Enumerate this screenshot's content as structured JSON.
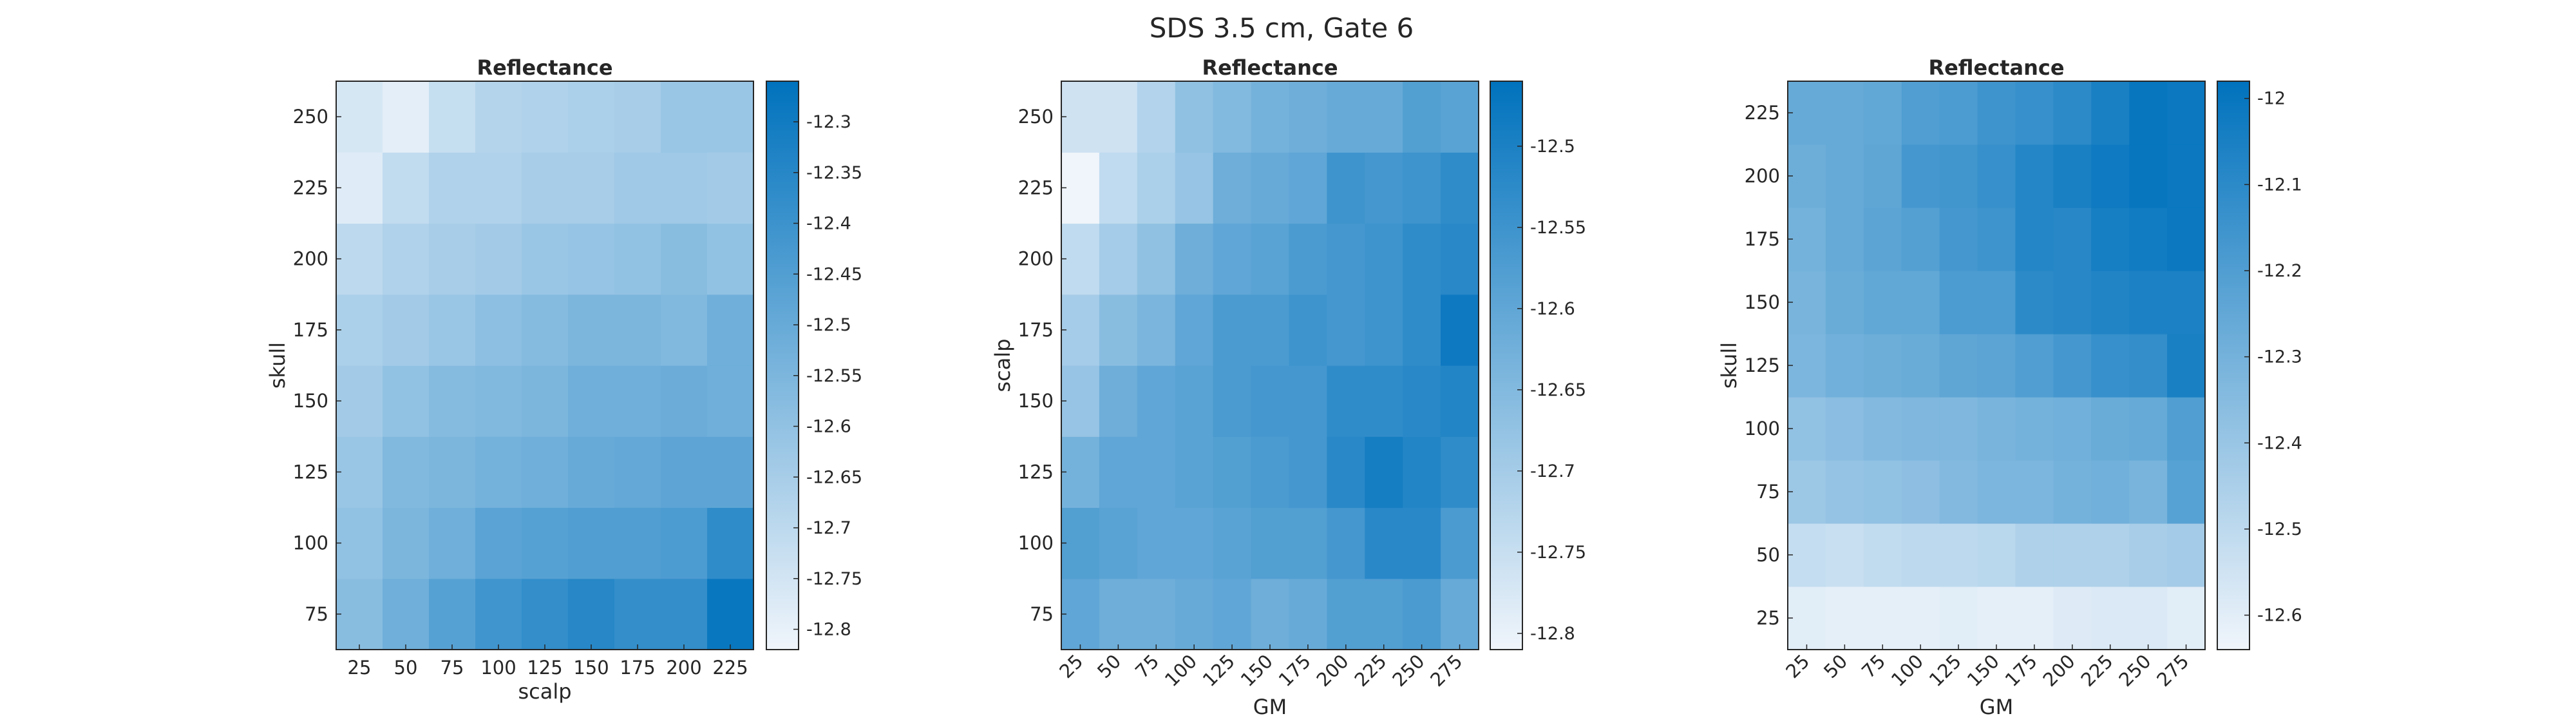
{
  "figure": {
    "suptitle": "SDS 3.5 cm, Gate 6"
  },
  "colormap": {
    "low": "#f0f5fb",
    "high": "#0072bd"
  },
  "chart_data": [
    {
      "type": "heatmap",
      "title": "Reflectance",
      "xlabel": "scalp",
      "ylabel": "skull",
      "x": [
        "25",
        "50",
        "75",
        "100",
        "125",
        "150",
        "175",
        "200",
        "225"
      ],
      "y": [
        "75",
        "100",
        "125",
        "150",
        "175",
        "200",
        "225",
        "250"
      ],
      "clim": [
        -12.82,
        -12.26
      ],
      "colorbar_ticks": [
        "-12.3",
        "-12.35",
        "-12.4",
        "-12.45",
        "-12.5",
        "-12.55",
        "-12.6",
        "-12.65",
        "-12.7",
        "-12.75",
        "-12.8"
      ],
      "colorbar_tick_values": [
        -12.3,
        -12.35,
        -12.4,
        -12.45,
        -12.5,
        -12.55,
        -12.6,
        -12.65,
        -12.7,
        -12.75,
        -12.8
      ],
      "x_tick_rotation": 0,
      "z": [
        [
          -12.58,
          -12.52,
          -12.46,
          -12.41,
          -12.38,
          -12.35,
          -12.38,
          -12.38,
          -12.28
        ],
        [
          -12.6,
          -12.55,
          -12.52,
          -12.47,
          -12.46,
          -12.45,
          -12.45,
          -12.44,
          -12.37
        ],
        [
          -12.62,
          -12.56,
          -12.55,
          -12.53,
          -12.52,
          -12.5,
          -12.49,
          -12.48,
          -12.48
        ],
        [
          -12.64,
          -12.6,
          -12.57,
          -12.56,
          -12.55,
          -12.52,
          -12.52,
          -12.51,
          -12.52
        ],
        [
          -12.66,
          -12.64,
          -12.62,
          -12.59,
          -12.57,
          -12.55,
          -12.55,
          -12.56,
          -12.52
        ],
        [
          -12.7,
          -12.67,
          -12.65,
          -12.64,
          -12.62,
          -12.61,
          -12.6,
          -12.58,
          -12.6
        ],
        [
          -12.78,
          -12.71,
          -12.67,
          -12.67,
          -12.65,
          -12.65,
          -12.63,
          -12.63,
          -12.64
        ],
        [
          -12.76,
          -12.79,
          -12.72,
          -12.68,
          -12.67,
          -12.66,
          -12.65,
          -12.62,
          -12.62
        ]
      ]
    },
    {
      "type": "heatmap",
      "title": "Reflectance",
      "xlabel": "GM",
      "ylabel": "scalp",
      "x": [
        "25",
        "50",
        "75",
        "100",
        "125",
        "150",
        "175",
        "200",
        "225",
        "250",
        "275"
      ],
      "y": [
        "75",
        "100",
        "125",
        "150",
        "175",
        "200",
        "225",
        "250"
      ],
      "clim": [
        -12.81,
        -12.46
      ],
      "colorbar_ticks": [
        "-12.5",
        "-12.55",
        "-12.6",
        "-12.65",
        "-12.7",
        "-12.75",
        "-12.8"
      ],
      "colorbar_tick_values": [
        -12.5,
        -12.55,
        -12.6,
        -12.65,
        -12.7,
        -12.75,
        -12.8
      ],
      "x_tick_rotation": -45,
      "z": [
        [
          -12.6,
          -12.62,
          -12.62,
          -12.61,
          -12.6,
          -12.62,
          -12.61,
          -12.58,
          -12.58,
          -12.57,
          -12.61
        ],
        [
          -12.58,
          -12.59,
          -12.6,
          -12.6,
          -12.59,
          -12.58,
          -12.58,
          -12.56,
          -12.52,
          -12.52,
          -12.57
        ],
        [
          -12.63,
          -12.6,
          -12.6,
          -12.59,
          -12.58,
          -12.57,
          -12.56,
          -12.52,
          -12.49,
          -12.51,
          -12.53
        ],
        [
          -12.68,
          -12.62,
          -12.6,
          -12.59,
          -12.57,
          -12.56,
          -12.56,
          -12.53,
          -12.53,
          -12.52,
          -12.51
        ],
        [
          -12.7,
          -12.66,
          -12.64,
          -12.6,
          -12.57,
          -12.57,
          -12.55,
          -12.56,
          -12.55,
          -12.53,
          -12.48
        ],
        [
          -12.74,
          -12.7,
          -12.67,
          -12.62,
          -12.6,
          -12.59,
          -12.57,
          -12.56,
          -12.55,
          -12.53,
          -12.52
        ],
        [
          -12.81,
          -12.74,
          -12.71,
          -12.68,
          -12.62,
          -12.61,
          -12.6,
          -12.55,
          -12.56,
          -12.55,
          -12.53
        ],
        [
          -12.76,
          -12.76,
          -12.72,
          -12.67,
          -12.65,
          -12.63,
          -12.62,
          -12.61,
          -12.61,
          -12.58,
          -12.59
        ]
      ]
    },
    {
      "type": "heatmap",
      "title": "Reflectance",
      "xlabel": "GM",
      "ylabel": "skull",
      "x": [
        "25",
        "50",
        "75",
        "100",
        "125",
        "150",
        "175",
        "200",
        "225",
        "250",
        "275"
      ],
      "y": [
        "25",
        "50",
        "75",
        "100",
        "125",
        "150",
        "175",
        "200",
        "225"
      ],
      "clim": [
        -12.64,
        -11.98
      ],
      "colorbar_ticks": [
        "-12",
        "-12.1",
        "-12.2",
        "-12.3",
        "-12.4",
        "-12.5",
        "-12.6"
      ],
      "colorbar_tick_values": [
        -12,
        -12.1,
        -12.2,
        -12.3,
        -12.4,
        -12.5,
        -12.6
      ],
      "x_tick_rotation": -45,
      "z": [
        [
          -12.6,
          -12.61,
          -12.61,
          -12.61,
          -12.6,
          -12.61,
          -12.61,
          -12.59,
          -12.58,
          -12.58,
          -12.6
        ],
        [
          -12.52,
          -12.53,
          -12.51,
          -12.5,
          -12.5,
          -12.49,
          -12.46,
          -12.46,
          -12.46,
          -12.44,
          -12.43
        ],
        [
          -12.41,
          -12.39,
          -12.38,
          -12.37,
          -12.34,
          -12.32,
          -12.32,
          -12.3,
          -12.29,
          -12.31,
          -12.22
        ],
        [
          -12.38,
          -12.36,
          -12.34,
          -12.33,
          -12.33,
          -12.31,
          -12.3,
          -12.29,
          -12.27,
          -12.26,
          -12.2
        ],
        [
          -12.32,
          -12.29,
          -12.28,
          -12.27,
          -12.24,
          -12.23,
          -12.2,
          -12.17,
          -12.13,
          -12.12,
          -12.05
        ],
        [
          -12.31,
          -12.27,
          -12.25,
          -12.25,
          -12.19,
          -12.19,
          -12.1,
          -12.09,
          -12.07,
          -12.06,
          -12.06
        ],
        [
          -12.3,
          -12.26,
          -12.23,
          -12.21,
          -12.17,
          -12.15,
          -12.08,
          -12.09,
          -12.04,
          -12.03,
          -12.01
        ],
        [
          -12.28,
          -12.26,
          -12.24,
          -12.17,
          -12.16,
          -12.13,
          -12.08,
          -12.05,
          -12.02,
          -12.0,
          -12.01
        ],
        [
          -12.26,
          -12.26,
          -12.25,
          -12.2,
          -12.19,
          -12.15,
          -12.13,
          -12.1,
          -12.05,
          -12.0,
          -12.01
        ]
      ]
    }
  ]
}
